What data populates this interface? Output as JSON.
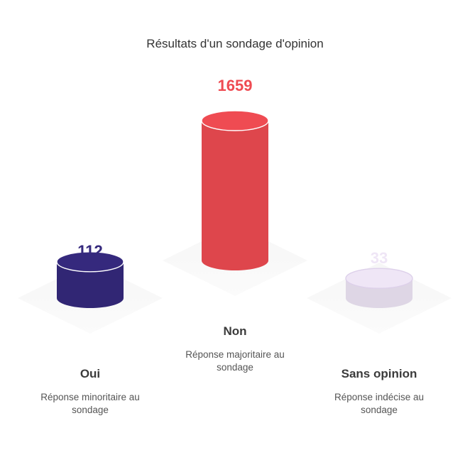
{
  "chart_data": {
    "type": "bar",
    "title": "Résultats d'un sondage d'opinion",
    "categories": [
      "Oui",
      "Non",
      "Sans opinion"
    ],
    "values": [
      112,
      1659,
      33
    ],
    "value_labels": [
      "112",
      "1659",
      "33"
    ],
    "descriptions": [
      [
        "Réponse minoritaire au",
        "sondage"
      ],
      [
        "Réponse majoritaire au",
        "sondage"
      ],
      [
        "Réponse indécise au",
        "sondage"
      ]
    ],
    "colors": [
      "#35297d",
      "#ef4b52",
      "#efe6f6"
    ],
    "value_colors": [
      "#35297d",
      "#ef4b52",
      "#efe6f6"
    ]
  }
}
